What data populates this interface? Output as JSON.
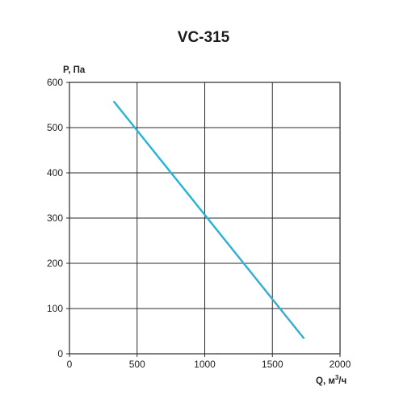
{
  "chart_data": {
    "type": "line",
    "title": "VC-315",
    "ylabel": "P, Па",
    "xlabel_prefix": "Q, м",
    "xlabel_sup": "3",
    "xlabel_suffix": "/ч",
    "xlim": [
      0,
      2000
    ],
    "ylim": [
      0,
      600
    ],
    "xticks": [
      0,
      500,
      1000,
      1500,
      2000
    ],
    "yticks": [
      0,
      100,
      200,
      300,
      400,
      500,
      600
    ],
    "xtick_labels": [
      "0",
      "500",
      "1000",
      "1500",
      "2000"
    ],
    "ytick_labels": [
      "0",
      "100",
      "200",
      "300",
      "400",
      "500",
      "600"
    ],
    "grid": true,
    "line_color": "#2bb0d8",
    "series": [
      {
        "x": [
          330,
          1730
        ],
        "y": [
          557,
          35
        ]
      }
    ]
  }
}
